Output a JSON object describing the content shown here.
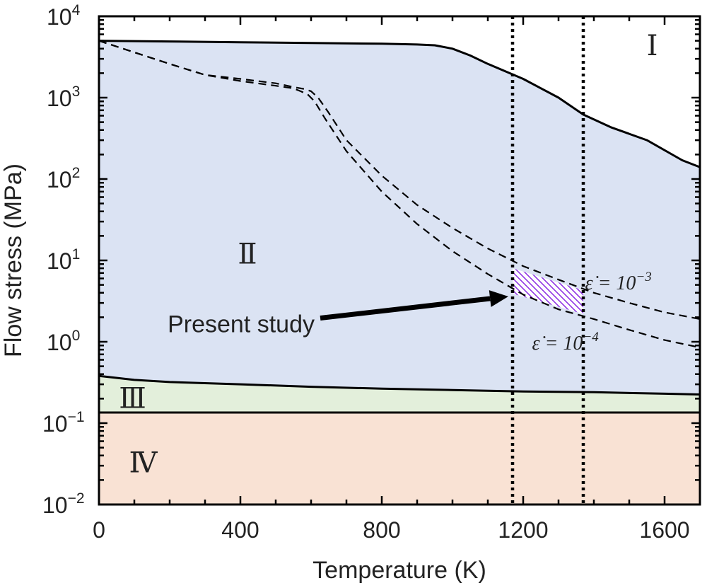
{
  "chart_data": {
    "type": "line",
    "xlabel": "Temperature (K)",
    "ylabel": "Flow stress (MPa)",
    "xlim": [
      0,
      1700
    ],
    "ylim": [
      0.01,
      10000
    ],
    "yscale": "log",
    "grid": false,
    "legend": "none",
    "x_ticks": [
      {
        "value": 0,
        "label": "0"
      },
      {
        "value": 400,
        "label": "400"
      },
      {
        "value": 800,
        "label": "800"
      },
      {
        "value": 1200,
        "label": "1200"
      },
      {
        "value": 1600,
        "label": "1600"
      }
    ],
    "y_ticks": [
      {
        "value": 0.01,
        "base": "10",
        "exp": "−2"
      },
      {
        "value": 0.1,
        "base": "10",
        "exp": "−1"
      },
      {
        "value": 1,
        "base": "10",
        "exp": "0"
      },
      {
        "value": 10,
        "base": "10",
        "exp": "1"
      },
      {
        "value": 100,
        "base": "10",
        "exp": "2"
      },
      {
        "value": 1000,
        "base": "10",
        "exp": "3"
      },
      {
        "value": 10000,
        "base": "10",
        "exp": "4"
      }
    ],
    "regions": [
      {
        "label": "Ⅰ",
        "x": 1565,
        "y": 4000,
        "color": "#ffffff"
      },
      {
        "label": "Ⅱ",
        "x": 420,
        "y": 11,
        "color": "#dbe3f3"
      },
      {
        "label": "Ⅲ",
        "x": 95,
        "y": 0.185,
        "color": "#e3efdb"
      },
      {
        "label": "Ⅳ",
        "x": 125,
        "y": 0.03,
        "color": "#f9e2d4"
      }
    ],
    "series": [
      {
        "style": "solid",
        "x": [
          0,
          200,
          400,
          600,
          800,
          900,
          950,
          1000,
          1050,
          1100,
          1150,
          1200,
          1300,
          1370,
          1450,
          1550,
          1650,
          1700
        ],
        "y": [
          5000,
          4900,
          4800,
          4700,
          4600,
          4500,
          4400,
          4000,
          3300,
          2600,
          2100,
          1700,
          1000,
          620,
          430,
          300,
          170,
          140
        ]
      },
      {
        "style": "dashed",
        "label": "ε̇ = 10⁻³",
        "x": [
          0,
          100,
          200,
          300,
          400,
          500,
          550,
          580,
          600,
          620,
          650,
          700,
          800,
          900,
          1000,
          1100,
          1200,
          1300,
          1400,
          1500,
          1600,
          1700
        ],
        "y": [
          5000,
          3600,
          2600,
          1900,
          1700,
          1500,
          1350,
          1280,
          1200,
          1000,
          650,
          300,
          110,
          48,
          25,
          14,
          8.5,
          5.8,
          4.0,
          3.0,
          2.3,
          1.9
        ]
      },
      {
        "style": "dashed",
        "label": "ε̇ = 10⁻⁴",
        "x": [
          0,
          100,
          200,
          300,
          400,
          500,
          550,
          570,
          590,
          610,
          640,
          700,
          800,
          900,
          1000,
          1100,
          1200,
          1300,
          1400,
          1500,
          1600,
          1700
        ],
        "y": [
          5000,
          3600,
          2600,
          1900,
          1600,
          1400,
          1300,
          1200,
          1100,
          900,
          550,
          220,
          70,
          28,
          13,
          6.8,
          3.8,
          2.5,
          1.9,
          1.4,
          1.05,
          0.85
        ]
      },
      {
        "style": "solid",
        "x": [
          0,
          100,
          200,
          400,
          600,
          800,
          1000,
          1200,
          1400,
          1600,
          1700
        ],
        "y": [
          0.38,
          0.34,
          0.32,
          0.3,
          0.28,
          0.265,
          0.255,
          0.245,
          0.24,
          0.23,
          0.225
        ]
      },
      {
        "style": "solid",
        "x": [
          0,
          1700
        ],
        "y": [
          0.135,
          0.135
        ]
      }
    ],
    "vlines": [
      1170,
      1370
    ],
    "study_band": {
      "x": [
        1170,
        1370
      ],
      "upper": [
        8.0,
        4.3
      ],
      "lower": [
        3.9,
        2.2
      ],
      "color": "#8a2be2"
    },
    "annotations": {
      "present_study": {
        "text": "Present study",
        "x": 610,
        "y": 1.6,
        "arrow_to_x": 1170,
        "arrow_to_y": 3.9
      },
      "rate3": {
        "prefix": "ε̇ = 10",
        "exp": "−3",
        "x": 1375,
        "y": 4.4
      },
      "rate4": {
        "prefix": "ε̇ = 10",
        "exp": "−4",
        "x": 1225,
        "y": 0.8
      }
    }
  }
}
